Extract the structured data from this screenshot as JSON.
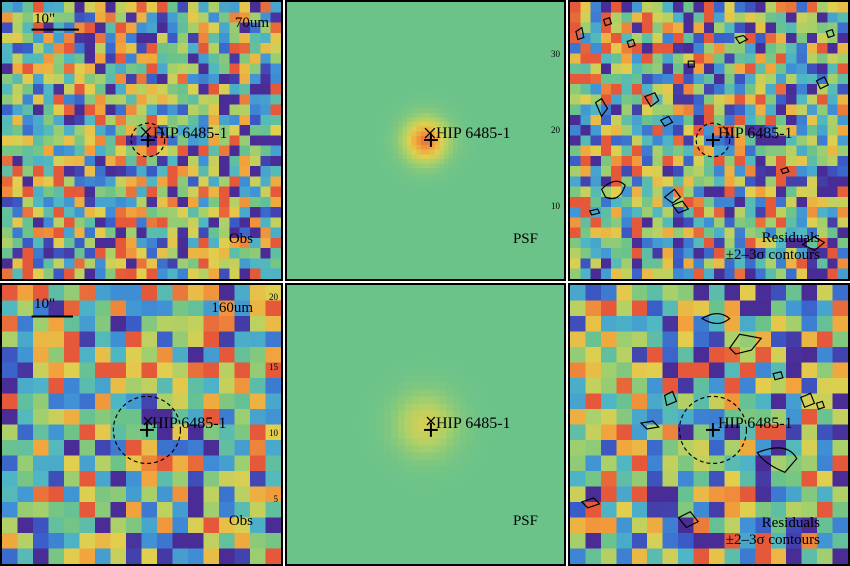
{
  "rows": [
    {
      "band": "70um",
      "scalebar_label": "10\"",
      "panels": [
        {
          "kind": "obs",
          "source_name": "HIP 6485-1",
          "corner_label": "Obs",
          "band_label": "70um"
        },
        {
          "kind": "psf",
          "source_name": "HIP 6485-1",
          "corner_label": "PSF",
          "axis_ticks": [
            "30",
            "20",
            "10"
          ]
        },
        {
          "kind": "residual",
          "source_name": "HIP 6485-1",
          "corner_label": "Residuals",
          "corner_label_2": "±2–3σ contours"
        }
      ]
    },
    {
      "band": "160um",
      "scalebar_label": "10\"",
      "panels": [
        {
          "kind": "obs",
          "source_name": "HIP 6485-1",
          "corner_label": "Obs",
          "band_label": "160um",
          "axis_ticks": [
            "20",
            "15",
            "10",
            "5"
          ]
        },
        {
          "kind": "psf",
          "source_name": "HIP 6485-1",
          "corner_label": "PSF"
        },
        {
          "kind": "residual",
          "source_name": "HIP 6485-1",
          "corner_label": "Residuals",
          "corner_label_2": "±2–3σ contours"
        }
      ]
    }
  ],
  "colors": {
    "background_green": "#66b582",
    "colormap": [
      "#4a2c96",
      "#3a5cc8",
      "#3f8fd6",
      "#4fb7c4",
      "#6cc38a",
      "#a8d06a",
      "#e1cf4e",
      "#f2a23c",
      "#e5583a"
    ]
  }
}
